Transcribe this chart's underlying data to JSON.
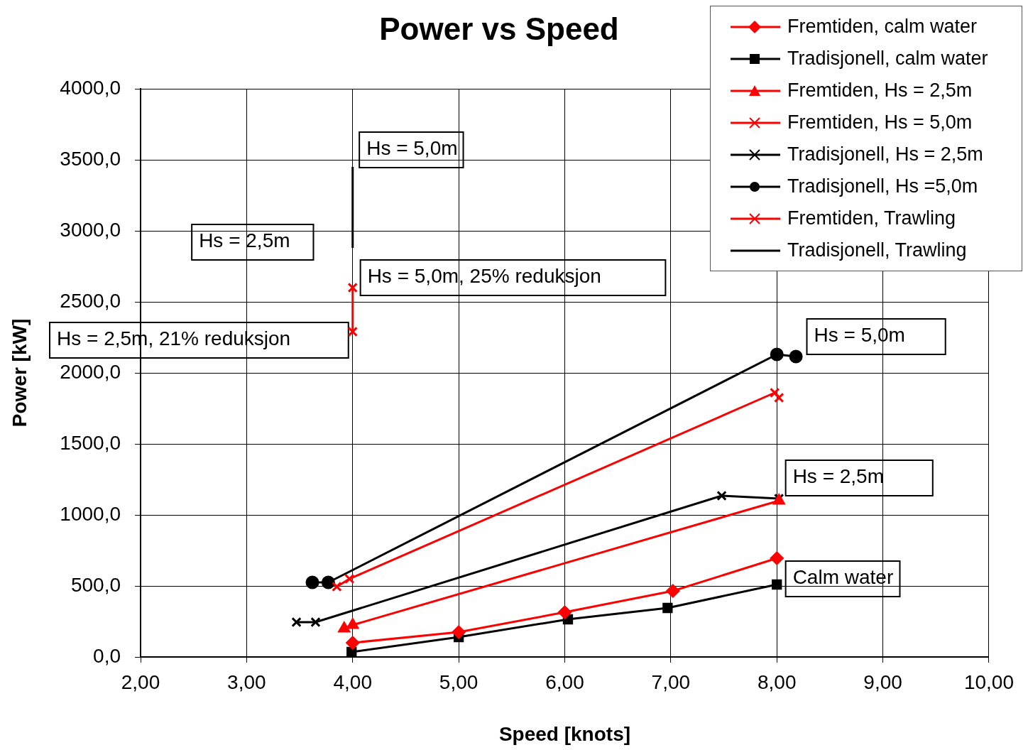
{
  "chart_data": {
    "type": "line",
    "title": "Power vs Speed",
    "xlabel": "Speed [knots]",
    "ylabel": "Power [kW]",
    "xlim": [
      2,
      10
    ],
    "ylim": [
      0,
      4000
    ],
    "xticks": [
      {
        "value": 2,
        "label": "2,00"
      },
      {
        "value": 3,
        "label": "3,00"
      },
      {
        "value": 4,
        "label": "4,00"
      },
      {
        "value": 5,
        "label": "5,00"
      },
      {
        "value": 6,
        "label": "6,00"
      },
      {
        "value": 7,
        "label": "7,00"
      },
      {
        "value": 8,
        "label": "8,00"
      },
      {
        "value": 9,
        "label": "9,00"
      },
      {
        "value": 10,
        "label": "10,00"
      }
    ],
    "yticks": [
      {
        "value": 0,
        "label": "0,0"
      },
      {
        "value": 500,
        "label": "500,0"
      },
      {
        "value": 1000,
        "label": "1000,0"
      },
      {
        "value": 1500,
        "label": "1500,0"
      },
      {
        "value": 2000,
        "label": "2000,0"
      },
      {
        "value": 2500,
        "label": "2500,0"
      },
      {
        "value": 3000,
        "label": "3000,0"
      },
      {
        "value": 3500,
        "label": "3500,0"
      },
      {
        "value": 4000,
        "label": "4000,0"
      }
    ],
    "grid": true,
    "legend": "top right",
    "line_style": "solid",
    "series": [
      {
        "name": "Fremtiden, calm water",
        "color": "#ff0000",
        "marker": "diamond",
        "x": [
          4.0,
          5.0,
          6.0,
          7.02,
          8.0
        ],
        "values": [
          100,
          175,
          315,
          465,
          695
        ]
      },
      {
        "name": "Tradisjonell, calm water",
        "color": "#000000",
        "marker": "square",
        "x": [
          3.99,
          5.0,
          6.03,
          6.97,
          8.0
        ],
        "values": [
          35,
          140,
          265,
          345,
          510
        ]
      },
      {
        "name": "Fremtiden, Hs = 2,5m",
        "color": "#ff0000",
        "marker": "triangle",
        "x": [
          3.92,
          4.0,
          8.02
        ],
        "values": [
          200,
          225,
          1100
        ]
      },
      {
        "name": "Fremtiden, Hs = 5,0m",
        "color": "#ff0000",
        "marker": "cross",
        "x": [
          3.85,
          3.97,
          7.98,
          8.02
        ],
        "values": [
          495,
          550,
          1860,
          1825
        ]
      },
      {
        "name": "Tradisjonell, Hs = 2,5m",
        "color": "#000000",
        "marker": "cross",
        "x": [
          3.47,
          3.65,
          7.48,
          8.02
        ],
        "values": [
          245,
          245,
          1135,
          1115
        ]
      },
      {
        "name": "Tradisjonell, Hs =5,0m",
        "color": "#000000",
        "marker": "circle",
        "x": [
          3.62,
          3.77,
          8.0,
          8.18
        ],
        "values": [
          525,
          525,
          2130,
          2115
        ]
      },
      {
        "name": "Fremtiden, Trawling",
        "color": "#ff0000",
        "marker": "cross",
        "x": [
          4.0,
          4.0
        ],
        "values": [
          2290,
          2600
        ]
      },
      {
        "name": "Tradisjonell, Trawling",
        "color": "#000000",
        "marker": "none",
        "x": [
          4.0,
          4.0
        ],
        "values": [
          2880,
          3450
        ]
      }
    ],
    "annotations": [
      "Hs = 5,0m",
      "Hs = 2,5m",
      "Hs = 5,0m, 25% reduksjon",
      "Hs = 2,5m, 21% reduksjon",
      "Hs = 5,0m",
      "Hs = 2,5m",
      "Calm water"
    ]
  }
}
